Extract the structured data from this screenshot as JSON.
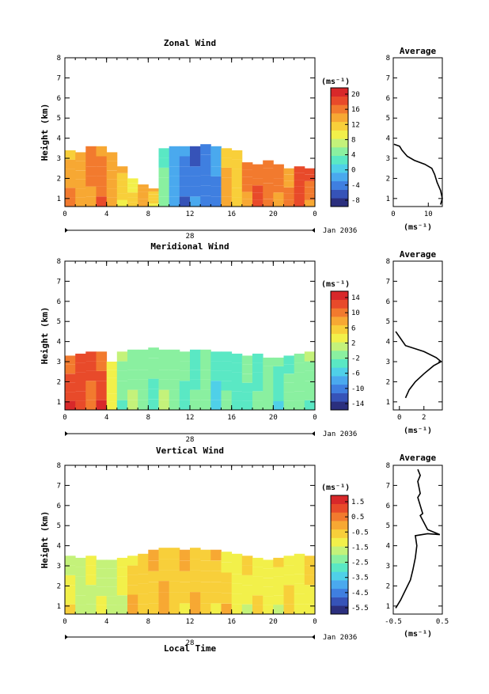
{
  "chart_data": [
    {
      "type": "heatmap",
      "title": "Zonal Wind",
      "ylabel": "Height (km)",
      "xlabel": "",
      "x_ticks": [
        "0",
        "4",
        "8",
        "12",
        "16",
        "20",
        "0"
      ],
      "y_ticks": [
        "1",
        "2",
        "3",
        "4",
        "5",
        "6",
        "7",
        "8"
      ],
      "xlim": [
        0,
        24
      ],
      "ylim": [
        0.6,
        8
      ],
      "date_label": "28",
      "month_label": "Jan 2036",
      "colorbar": {
        "unit": "(ms⁻¹)",
        "labels": [
          "20",
          "16",
          "12",
          "8",
          "4",
          "0",
          "-4",
          "-8"
        ],
        "range": [
          -10,
          22
        ]
      },
      "columns": [
        {
          "x": 0,
          "top": 3.4,
          "v": 14
        },
        {
          "x": 1,
          "top": 3.3,
          "v": 15
        },
        {
          "x": 2,
          "top": 3.6,
          "v": 16
        },
        {
          "x": 3,
          "top": 3.6,
          "v": 16
        },
        {
          "x": 4,
          "top": 3.3,
          "v": 13
        },
        {
          "x": 5,
          "top": 2.6,
          "v": 12
        },
        {
          "x": 6,
          "top": 2.0,
          "v": 10
        },
        {
          "x": 7,
          "top": 1.7,
          "v": 15
        },
        {
          "x": 8,
          "top": 1.5,
          "v": 12
        },
        {
          "x": 9,
          "top": 3.5,
          "v": 4
        },
        {
          "x": 10,
          "top": 3.6,
          "v": -3
        },
        {
          "x": 11,
          "top": 3.6,
          "v": -4
        },
        {
          "x": 12,
          "top": 3.6,
          "v": -5
        },
        {
          "x": 13,
          "top": 3.7,
          "v": -4
        },
        {
          "x": 14,
          "top": 3.6,
          "v": -3
        },
        {
          "x": 15,
          "top": 3.5,
          "v": 13
        },
        {
          "x": 16,
          "top": 3.4,
          "v": 12
        },
        {
          "x": 17,
          "top": 2.8,
          "v": 16
        },
        {
          "x": 18,
          "top": 2.7,
          "v": 17
        },
        {
          "x": 19,
          "top": 2.9,
          "v": 17
        },
        {
          "x": 20,
          "top": 2.7,
          "v": 16
        },
        {
          "x": 21,
          "top": 2.5,
          "v": 15
        },
        {
          "x": 22,
          "top": 2.6,
          "v": 18
        },
        {
          "x": 23,
          "top": 2.5,
          "v": 17
        }
      ],
      "profile": {
        "title": "Average",
        "xlim": [
          0,
          14
        ],
        "x_ticks": [
          "0",
          "10"
        ],
        "xlabel": "(ms⁻¹)",
        "points": [
          [
            13.5,
            0.7
          ],
          [
            14,
            1.0
          ],
          [
            13.5,
            1.4
          ],
          [
            12.5,
            1.8
          ],
          [
            11.8,
            2.2
          ],
          [
            11,
            2.5
          ],
          [
            9,
            2.7
          ],
          [
            6,
            2.9
          ],
          [
            4,
            3.1
          ],
          [
            2.5,
            3.4
          ],
          [
            1.8,
            3.6
          ],
          [
            0.2,
            3.7
          ]
        ]
      }
    },
    {
      "type": "heatmap",
      "title": "Meridional Wind",
      "ylabel": "Height (km)",
      "xlabel": "",
      "x_ticks": [
        "0",
        "4",
        "8",
        "12",
        "16",
        "20",
        "0"
      ],
      "y_ticks": [
        "1",
        "2",
        "3",
        "4",
        "5",
        "6",
        "7",
        "8"
      ],
      "xlim": [
        0,
        24
      ],
      "ylim": [
        0.6,
        8
      ],
      "date_label": "28",
      "month_label": "Jan 2036",
      "colorbar": {
        "unit": "(ms⁻¹)",
        "labels": [
          "14",
          "10",
          "6",
          "2",
          "-2",
          "-6",
          "-10",
          "-14"
        ],
        "range": [
          -16,
          16
        ]
      },
      "columns": [
        {
          "x": 0,
          "top": 3.3,
          "v": 12
        },
        {
          "x": 1,
          "top": 3.4,
          "v": 13
        },
        {
          "x": 2,
          "top": 3.5,
          "v": 12
        },
        {
          "x": 3,
          "top": 3.5,
          "v": 12
        },
        {
          "x": 4,
          "top": 3.0,
          "v": 3
        },
        {
          "x": 5,
          "top": 3.5,
          "v": -1
        },
        {
          "x": 6,
          "top": 3.6,
          "v": -1
        },
        {
          "x": 7,
          "top": 3.6,
          "v": -2
        },
        {
          "x": 8,
          "top": 3.7,
          "v": -2
        },
        {
          "x": 9,
          "top": 3.6,
          "v": -1
        },
        {
          "x": 10,
          "top": 3.6,
          "v": -2
        },
        {
          "x": 11,
          "top": 3.5,
          "v": -2
        },
        {
          "x": 12,
          "top": 3.6,
          "v": -3
        },
        {
          "x": 13,
          "top": 3.6,
          "v": -2
        },
        {
          "x": 14,
          "top": 3.5,
          "v": -4
        },
        {
          "x": 15,
          "top": 3.5,
          "v": -3
        },
        {
          "x": 16,
          "top": 3.4,
          "v": -4
        },
        {
          "x": 17,
          "top": 3.3,
          "v": -2
        },
        {
          "x": 18,
          "top": 3.4,
          "v": -3
        },
        {
          "x": 19,
          "top": 3.2,
          "v": -2
        },
        {
          "x": 20,
          "top": 3.2,
          "v": -3
        },
        {
          "x": 21,
          "top": 3.3,
          "v": -2
        },
        {
          "x": 22,
          "top": 3.4,
          "v": -1
        },
        {
          "x": 23,
          "top": 3.5,
          "v": -1
        }
      ],
      "profile": {
        "title": "Average",
        "xlim": [
          -0.5,
          3.5
        ],
        "x_ticks": [
          "0",
          "2"
        ],
        "xlabel": "(ms⁻¹)",
        "points": [
          [
            0.5,
            1.2
          ],
          [
            0.8,
            1.6
          ],
          [
            1.3,
            2.0
          ],
          [
            2.0,
            2.4
          ],
          [
            2.8,
            2.8
          ],
          [
            3.4,
            3.0
          ],
          [
            3.0,
            3.2
          ],
          [
            2.0,
            3.5
          ],
          [
            0.5,
            3.8
          ],
          [
            -0.3,
            4.5
          ]
        ]
      }
    },
    {
      "type": "heatmap",
      "title": "Vertical Wind",
      "ylabel": "Height (km)",
      "xlabel": "Local Time",
      "x_ticks": [
        "0",
        "4",
        "8",
        "12",
        "16",
        "20",
        "0"
      ],
      "y_ticks": [
        "1",
        "2",
        "3",
        "4",
        "5",
        "6",
        "7",
        "8"
      ],
      "xlim": [
        0,
        24
      ],
      "ylim": [
        0.6,
        8
      ],
      "date_label": "28",
      "month_label": "Jan 2036",
      "colorbar": {
        "unit": "(ms⁻¹)",
        "labels": [
          "1.5",
          "0.5",
          "-0.5",
          "-1.5",
          "-2.5",
          "-3.5",
          "-4.5",
          "-5.5"
        ],
        "range": [
          -6,
          2
        ]
      },
      "columns": [
        {
          "x": 0,
          "top": 3.5,
          "v": -1.3
        },
        {
          "x": 1,
          "top": 3.4,
          "v": -1.5
        },
        {
          "x": 2,
          "top": 3.5,
          "v": -1.4
        },
        {
          "x": 3,
          "top": 3.3,
          "v": -1.6
        },
        {
          "x": 4,
          "top": 3.3,
          "v": -1.8
        },
        {
          "x": 5,
          "top": 3.4,
          "v": -1.2
        },
        {
          "x": 6,
          "top": 3.5,
          "v": -0.6
        },
        {
          "x": 7,
          "top": 3.6,
          "v": -0.4
        },
        {
          "x": 8,
          "top": 3.8,
          "v": -0.3
        },
        {
          "x": 9,
          "top": 3.9,
          "v": -0.4
        },
        {
          "x": 10,
          "top": 3.9,
          "v": -0.5
        },
        {
          "x": 11,
          "top": 3.8,
          "v": -0.4
        },
        {
          "x": 12,
          "top": 3.9,
          "v": -0.5
        },
        {
          "x": 13,
          "top": 3.8,
          "v": -0.6
        },
        {
          "x": 14,
          "top": 3.8,
          "v": -0.5
        },
        {
          "x": 15,
          "top": 3.7,
          "v": -0.7
        },
        {
          "x": 16,
          "top": 3.6,
          "v": -0.9
        },
        {
          "x": 17,
          "top": 3.5,
          "v": -1.0
        },
        {
          "x": 18,
          "top": 3.4,
          "v": -1.1
        },
        {
          "x": 19,
          "top": 3.3,
          "v": -1.2
        },
        {
          "x": 20,
          "top": 3.4,
          "v": -1.1
        },
        {
          "x": 21,
          "top": 3.5,
          "v": -1.0
        },
        {
          "x": 22,
          "top": 3.6,
          "v": -0.9
        },
        {
          "x": 23,
          "top": 3.5,
          "v": -0.8
        }
      ],
      "profile": {
        "title": "Average",
        "xlim": [
          -0.5,
          0.5
        ],
        "x_ticks": [
          "-0.5",
          "0.5"
        ],
        "xlabel": "(ms⁻¹)",
        "points": [
          [
            -0.45,
            0.9
          ],
          [
            -0.35,
            1.3
          ],
          [
            -0.25,
            1.8
          ],
          [
            -0.15,
            2.3
          ],
          [
            -0.1,
            2.8
          ],
          [
            -0.05,
            3.4
          ],
          [
            -0.02,
            4.0
          ],
          [
            -0.05,
            4.5
          ],
          [
            0.2,
            4.6
          ],
          [
            0.45,
            4.55
          ],
          [
            0.2,
            4.8
          ],
          [
            0.05,
            5.5
          ],
          [
            0.1,
            5.6
          ],
          [
            0.05,
            6.0
          ],
          [
            0.0,
            6.4
          ],
          [
            0.05,
            6.6
          ],
          [
            0.0,
            7.2
          ],
          [
            0.05,
            7.5
          ],
          [
            0.0,
            7.8
          ]
        ]
      }
    }
  ]
}
